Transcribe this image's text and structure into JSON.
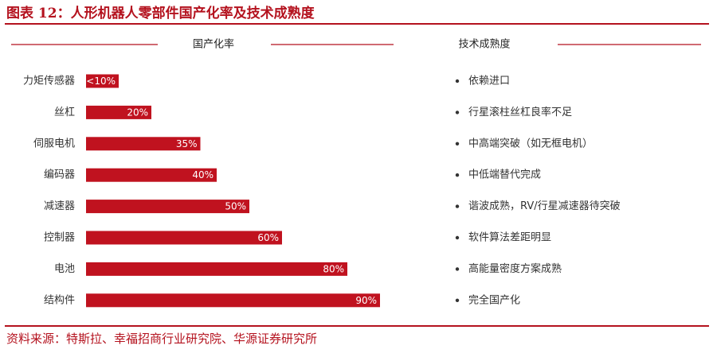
{
  "title": "图表 12：人形机器人零部件国产化率及技术成熟度",
  "source": "资料来源：特斯拉、幸福招商行业研究院、华源证券研究所",
  "colors": {
    "accent": "#b4121e",
    "bar": "#c0121f",
    "text": "#333333"
  },
  "chart_data": {
    "type": "bar",
    "orientation": "horizontal",
    "column_headers": [
      "国产化率",
      "技术成熟度"
    ],
    "categories": [
      "力矩传感器",
      "丝杠",
      "伺服电机",
      "编码器",
      "减速器",
      "控制器",
      "电池",
      "结构件"
    ],
    "values": [
      10,
      20,
      35,
      40,
      50,
      60,
      80,
      90
    ],
    "value_labels": [
      "<10%",
      "20%",
      "35%",
      "40%",
      "50%",
      "60%",
      "80%",
      "90%"
    ],
    "value_unit": "%",
    "xlim": [
      0,
      100
    ],
    "maturity": [
      "依赖进口",
      "行星滚柱丝杠良率不足",
      "中高端突破（如无框电机）",
      "中低端替代完成",
      "谐波成熟，RV/行星减速器待突破",
      "软件算法差距明显",
      "高能量密度方案成熟",
      "完全国产化"
    ],
    "grid": false,
    "legend": "none"
  }
}
